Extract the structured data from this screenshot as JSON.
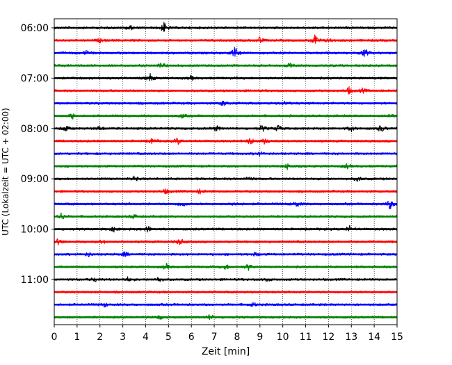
{
  "chart_data": {
    "type": "line",
    "title": "",
    "xlabel": "Zeit  [min]",
    "ylabel": "UTC (Lokalzeit = UTC + 02:00)",
    "xlim": [
      0,
      15
    ],
    "x_ticks": [
      "0",
      "1",
      "2",
      "3",
      "4",
      "5",
      "6",
      "7",
      "8",
      "9",
      "10",
      "11",
      "12",
      "13",
      "14",
      "15"
    ],
    "y_ticks": [
      "06:00",
      "07:00",
      "08:00",
      "09:00",
      "10:00",
      "11:00"
    ],
    "grid": "vertical-dotted",
    "trace_colors": [
      "#000000",
      "#ff0000",
      "#0000ff",
      "#008000"
    ],
    "traces": [
      {
        "hour": "06:00",
        "events": [
          {
            "x": 3.3,
            "a": 0.45
          },
          {
            "x": 4.8,
            "a": 0.85
          }
        ]
      },
      {
        "hour": "06:15",
        "events": [
          {
            "x": 2.0,
            "a": 0.3
          },
          {
            "x": 9.0,
            "a": 0.5
          },
          {
            "x": 11.4,
            "a": 1.0
          },
          {
            "x": 12.0,
            "a": 0.35
          }
        ]
      },
      {
        "hour": "06:30",
        "events": [
          {
            "x": 1.4,
            "a": 0.3
          },
          {
            "x": 7.9,
            "a": 1.0
          },
          {
            "x": 13.6,
            "a": 0.7
          }
        ]
      },
      {
        "hour": "06:45",
        "events": [
          {
            "x": 4.7,
            "a": 0.4
          },
          {
            "x": 10.3,
            "a": 0.3
          }
        ]
      },
      {
        "hour": "07:00",
        "events": [
          {
            "x": 4.2,
            "a": 0.6
          },
          {
            "x": 6.0,
            "a": 0.3
          }
        ]
      },
      {
        "hour": "07:15",
        "events": [
          {
            "x": 12.9,
            "a": 0.55
          },
          {
            "x": 13.5,
            "a": 0.35
          }
        ]
      },
      {
        "hour": "07:30",
        "events": [
          {
            "x": 7.4,
            "a": 0.45
          },
          {
            "x": 10.1,
            "a": 0.35
          }
        ]
      },
      {
        "hour": "07:45",
        "events": [
          {
            "x": 0.8,
            "a": 0.45
          },
          {
            "x": 5.6,
            "a": 0.3
          },
          {
            "x": 14.7,
            "a": 0.4
          }
        ]
      },
      {
        "hour": "08:00",
        "events": [
          {
            "x": 0.5,
            "a": 0.5
          },
          {
            "x": 2.0,
            "a": 0.4
          },
          {
            "x": 7.1,
            "a": 0.4
          },
          {
            "x": 9.1,
            "a": 0.55
          },
          {
            "x": 9.8,
            "a": 0.5
          },
          {
            "x": 13.0,
            "a": 0.4
          },
          {
            "x": 14.3,
            "a": 0.6
          }
        ]
      },
      {
        "hour": "08:15",
        "events": [
          {
            "x": 4.3,
            "a": 0.45
          },
          {
            "x": 5.4,
            "a": 0.55
          },
          {
            "x": 8.6,
            "a": 0.6
          },
          {
            "x": 9.2,
            "a": 0.4
          }
        ]
      },
      {
        "hour": "08:30",
        "events": [
          {
            "x": 9.0,
            "a": 0.3
          }
        ]
      },
      {
        "hour": "08:45",
        "events": [
          {
            "x": 10.2,
            "a": 0.45
          },
          {
            "x": 12.8,
            "a": 0.35
          }
        ]
      },
      {
        "hour": "09:00",
        "events": [
          {
            "x": 3.5,
            "a": 0.45
          },
          {
            "x": 8.5,
            "a": 0.35
          },
          {
            "x": 13.3,
            "a": 0.4
          }
        ]
      },
      {
        "hour": "09:15",
        "events": [
          {
            "x": 4.9,
            "a": 0.4
          },
          {
            "x": 6.4,
            "a": 0.4
          }
        ]
      },
      {
        "hour": "09:30",
        "events": [
          {
            "x": 5.6,
            "a": 0.5
          },
          {
            "x": 8.0,
            "a": 0.45
          },
          {
            "x": 10.6,
            "a": 0.5
          },
          {
            "x": 14.7,
            "a": 0.8
          }
        ]
      },
      {
        "hour": "09:45",
        "events": [
          {
            "x": 0.3,
            "a": 0.6
          },
          {
            "x": 3.5,
            "a": 0.35
          }
        ]
      },
      {
        "hour": "10:00",
        "events": [
          {
            "x": 2.6,
            "a": 0.35
          },
          {
            "x": 4.1,
            "a": 0.5
          },
          {
            "x": 12.9,
            "a": 0.55
          }
        ]
      },
      {
        "hour": "10:15",
        "events": [
          {
            "x": 0.2,
            "a": 0.55
          },
          {
            "x": 5.5,
            "a": 0.5
          },
          {
            "x": 2.1,
            "a": 0.3
          }
        ]
      },
      {
        "hour": "10:30",
        "events": [
          {
            "x": 1.5,
            "a": 0.35
          },
          {
            "x": 3.1,
            "a": 0.35
          },
          {
            "x": 8.8,
            "a": 0.3
          }
        ]
      },
      {
        "hour": "10:45",
        "events": [
          {
            "x": 4.9,
            "a": 0.45
          },
          {
            "x": 7.5,
            "a": 0.45
          },
          {
            "x": 8.5,
            "a": 0.5
          }
        ]
      },
      {
        "hour": "11:00",
        "events": [
          {
            "x": 1.8,
            "a": 0.35
          },
          {
            "x": 3.2,
            "a": 0.35
          },
          {
            "x": 4.6,
            "a": 0.5
          },
          {
            "x": 9.3,
            "a": 0.3
          }
        ]
      },
      {
        "hour": "11:15",
        "events": []
      },
      {
        "hour": "11:30",
        "events": [
          {
            "x": 2.2,
            "a": 0.35
          },
          {
            "x": 8.7,
            "a": 0.35
          }
        ]
      },
      {
        "hour": "11:45",
        "events": [
          {
            "x": 6.8,
            "a": 0.4
          },
          {
            "x": 4.6,
            "a": 0.3
          }
        ]
      }
    ]
  }
}
